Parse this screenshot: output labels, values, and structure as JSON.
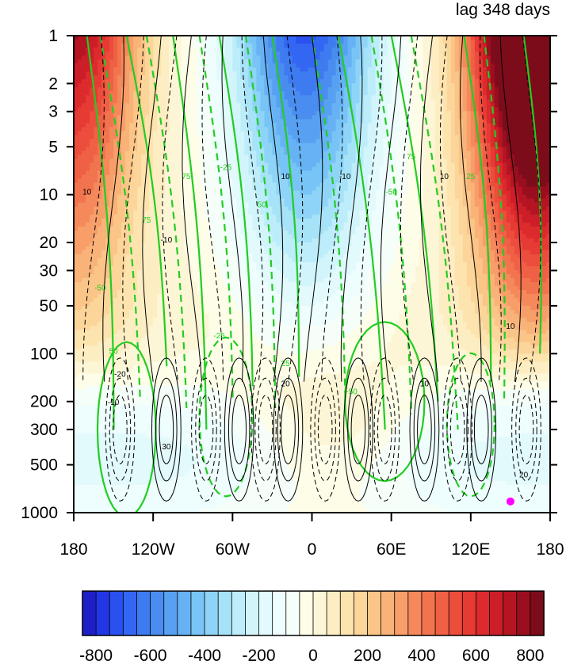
{
  "chart_data": {
    "type": "heatmap",
    "title": "lag 348 days",
    "x_axis": {
      "kind": "longitude",
      "range": [
        -180,
        180
      ],
      "ticks": [
        -180,
        -120,
        -60,
        0,
        60,
        120,
        180
      ],
      "tick_labels": [
        "180",
        "120W",
        "60W",
        "0",
        "60E",
        "120E",
        "180"
      ]
    },
    "y_axis": {
      "kind": "pressure",
      "scale": "log",
      "reversed": true,
      "range": [
        1,
        1000
      ],
      "ticks": [
        1,
        2,
        3,
        5,
        10,
        20,
        30,
        50,
        100,
        200,
        300,
        500,
        1000
      ],
      "tick_labels": [
        "1",
        "2",
        "3",
        "5",
        "10",
        "20",
        "30",
        "50",
        "100",
        "200",
        "300",
        "500",
        "1000"
      ]
    },
    "colorbar": {
      "levels": [
        -850,
        -800,
        -750,
        -700,
        -650,
        -600,
        -550,
        -500,
        -450,
        -400,
        -350,
        -300,
        -250,
        -200,
        -150,
        -100,
        -50,
        0,
        50,
        100,
        150,
        200,
        250,
        300,
        350,
        400,
        450,
        500,
        550,
        600,
        650,
        700,
        750,
        800,
        850
      ],
      "colors": [
        "#1f1fc8",
        "#2336e6",
        "#2a50f0",
        "#3366f2",
        "#3e7af0",
        "#4a8df0",
        "#57a0f2",
        "#66b2f4",
        "#78c4f6",
        "#8ed4f8",
        "#a6e2f8",
        "#bdedfa",
        "#d2f5fb",
        "#e2fafc",
        "#eefdfd",
        "#f5fef8",
        "#fdfde8",
        "#fdf6d6",
        "#fdedc2",
        "#fde3ad",
        "#fcd59a",
        "#fbc588",
        "#f9b278",
        "#f79e69",
        "#f5895b",
        "#f2744f",
        "#ef6045",
        "#ec4d3c",
        "#e63a34",
        "#dc2a2d",
        "#cc1e28",
        "#b51523",
        "#990f1f",
        "#7d0c1b"
      ],
      "tick_values": [
        -800,
        -600,
        -400,
        -200,
        0,
        200,
        400,
        600,
        800
      ],
      "tick_labels": [
        "-800",
        "-600",
        "-400",
        "-200",
        "0",
        "200",
        "400",
        "600",
        "800"
      ]
    },
    "contour_labels": {
      "black": [
        "10",
        "-10",
        "20",
        "-20",
        "30"
      ],
      "green": [
        "25",
        "-25",
        "50",
        "-50",
        "75"
      ]
    },
    "marker": {
      "lon": 150,
      "p": 850,
      "color": "#ff00ff"
    },
    "colors": {
      "black_contour": "#000000",
      "green_contour": "#22cc22",
      "marker": "#ff00ff"
    }
  }
}
